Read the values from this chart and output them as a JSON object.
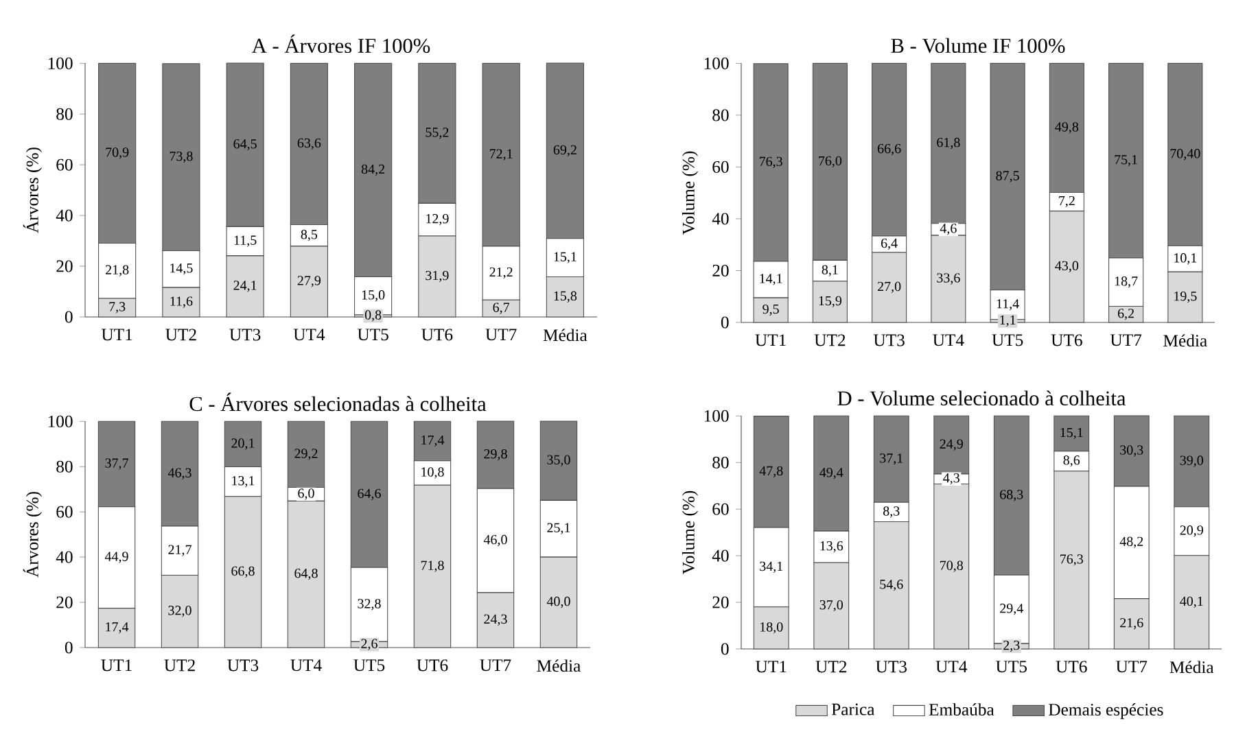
{
  "chart_data": [
    {
      "type": "bar",
      "stacked": true,
      "title": "A - Árvores IF 100%",
      "ylabel": "Árvores (%)",
      "categories": [
        "UT1",
        "UT2",
        "UT3",
        "UT4",
        "UT5",
        "UT6",
        "UT7",
        "Média"
      ],
      "ylim": [
        0,
        100.1
      ],
      "yticks": [
        0,
        20,
        40,
        60,
        80,
        100
      ],
      "grid": false,
      "legend": false,
      "series": [
        {
          "color": "#d9d9d9",
          "values": [
            7.3,
            11.6,
            24.1,
            27.9,
            0.8,
            31.9,
            6.7,
            15.8
          ],
          "value_labels": [
            "7,3",
            "11,6",
            "24,1",
            "27,9",
            "0,8",
            "31,9",
            "6,7",
            "15,8"
          ]
        },
        {
          "color": "#ffffff",
          "values": [
            21.8,
            14.5,
            11.5,
            8.5,
            15.0,
            12.9,
            21.2,
            15.1
          ],
          "value_labels": [
            "21,8",
            "14,5",
            "11,5",
            "8,5",
            "15,0",
            "12,9",
            "21,2",
            "15,1"
          ]
        },
        {
          "color": "#7f7f7f",
          "values": [
            70.9,
            73.8,
            64.5,
            63.6,
            84.2,
            55.2,
            72.1,
            69.2
          ],
          "value_labels": [
            "70,9",
            "73,8",
            "64,5",
            "63,6",
            "84,2",
            "55,2",
            "72,1",
            "69,2"
          ]
        }
      ]
    },
    {
      "type": "bar",
      "stacked": true,
      "title": "B - Volume IF 100%",
      "ylabel": "Volume (%)",
      "categories": [
        "UT1",
        "UT2",
        "UT3",
        "UT4",
        "UT5",
        "UT6",
        "UT7",
        "Média"
      ],
      "ylim": [
        0,
        100.1
      ],
      "yticks": [
        0,
        20,
        40,
        60,
        80,
        100
      ],
      "grid": false,
      "legend": false,
      "series": [
        {
          "color": "#d9d9d9",
          "values": [
            9.5,
            15.9,
            27.0,
            33.6,
            1.1,
            43.0,
            6.2,
            19.5
          ],
          "value_labels": [
            "9,5",
            "15,9",
            "27,0",
            "33,6",
            "1,1",
            "43,0",
            "6,2",
            "19,5"
          ]
        },
        {
          "color": "#ffffff",
          "values": [
            14.1,
            8.1,
            6.4,
            4.6,
            11.4,
            7.2,
            18.7,
            10.1
          ],
          "value_labels": [
            "14,1",
            "8,1",
            "6,4",
            "4,6",
            "11,4",
            "7,2",
            "18,7",
            "10,1"
          ]
        },
        {
          "color": "#7f7f7f",
          "values": [
            76.3,
            76.0,
            66.6,
            61.8,
            87.5,
            49.8,
            75.1,
            70.4
          ],
          "value_labels": [
            "76,3",
            "76,0",
            "66,6",
            "61,8",
            "87,5",
            "49,8",
            "75,1",
            "70,40"
          ]
        }
      ]
    },
    {
      "type": "bar",
      "stacked": true,
      "title": "C - Árvores selecionadas à colheita",
      "ylabel": "Árvores (%)",
      "categories": [
        "UT1",
        "UT2",
        "UT3",
        "UT4",
        "UT5",
        "UT6",
        "UT7",
        "Média"
      ],
      "ylim": [
        0,
        100.1
      ],
      "yticks": [
        0,
        20,
        40,
        60,
        80,
        100
      ],
      "grid": false,
      "legend": false,
      "series": [
        {
          "color": "#d9d9d9",
          "values": [
            17.4,
            32.0,
            66.8,
            64.8,
            2.6,
            71.8,
            24.3,
            40.0
          ],
          "value_labels": [
            "17,4",
            "32,0",
            "66,8",
            "64,8",
            "2,6",
            "71,8",
            "24,3",
            "40,0"
          ]
        },
        {
          "color": "#ffffff",
          "values": [
            44.9,
            21.7,
            13.1,
            6.0,
            32.8,
            10.8,
            46.0,
            25.1
          ],
          "value_labels": [
            "44,9",
            "21,7",
            "13,1",
            "6,0",
            "32,8",
            "10,8",
            "46,0",
            "25,1"
          ]
        },
        {
          "color": "#7f7f7f",
          "values": [
            37.7,
            46.3,
            20.1,
            29.2,
            64.6,
            17.4,
            29.8,
            35.0
          ],
          "value_labels": [
            "37,7",
            "46,3",
            "20,1",
            "29,2",
            "64,6",
            "17,4",
            "29,8",
            "35,0"
          ]
        }
      ]
    },
    {
      "type": "bar",
      "stacked": true,
      "title": "D - Volume selecionado à colheita",
      "ylabel": "Volume (%)",
      "categories": [
        "UT1",
        "UT2",
        "UT3",
        "UT4",
        "UT5",
        "UT6",
        "UT7",
        "Média"
      ],
      "ylim": [
        0,
        100.1
      ],
      "yticks": [
        0,
        20,
        40,
        60,
        80,
        100
      ],
      "grid": false,
      "legend": "bottom",
      "series": [
        {
          "name": "Parica",
          "color": "#d9d9d9",
          "values": [
            18.0,
            37.0,
            54.6,
            70.8,
            2.3,
            76.3,
            21.6,
            40.1
          ],
          "value_labels": [
            "18,0",
            "37,0",
            "54,6",
            "70,8",
            "2,3",
            "76,3",
            "21,6",
            "40,1"
          ]
        },
        {
          "name": "Embaúba",
          "color": "#ffffff",
          "values": [
            34.1,
            13.6,
            8.3,
            4.3,
            29.4,
            8.6,
            48.2,
            20.9
          ],
          "value_labels": [
            "34,1",
            "13,6",
            "8,3",
            "4,3",
            "29,4",
            "8,6",
            "48,2",
            "20,9"
          ]
        },
        {
          "name": "Demais espécies",
          "color": "#7f7f7f",
          "values": [
            47.8,
            49.4,
            37.1,
            24.9,
            68.3,
            15.1,
            30.3,
            39.0
          ],
          "value_labels": [
            "47,8",
            "49,4",
            "37,1",
            "24,9",
            "68,3",
            "15,1",
            "30,3",
            "39,0"
          ]
        }
      ]
    }
  ]
}
